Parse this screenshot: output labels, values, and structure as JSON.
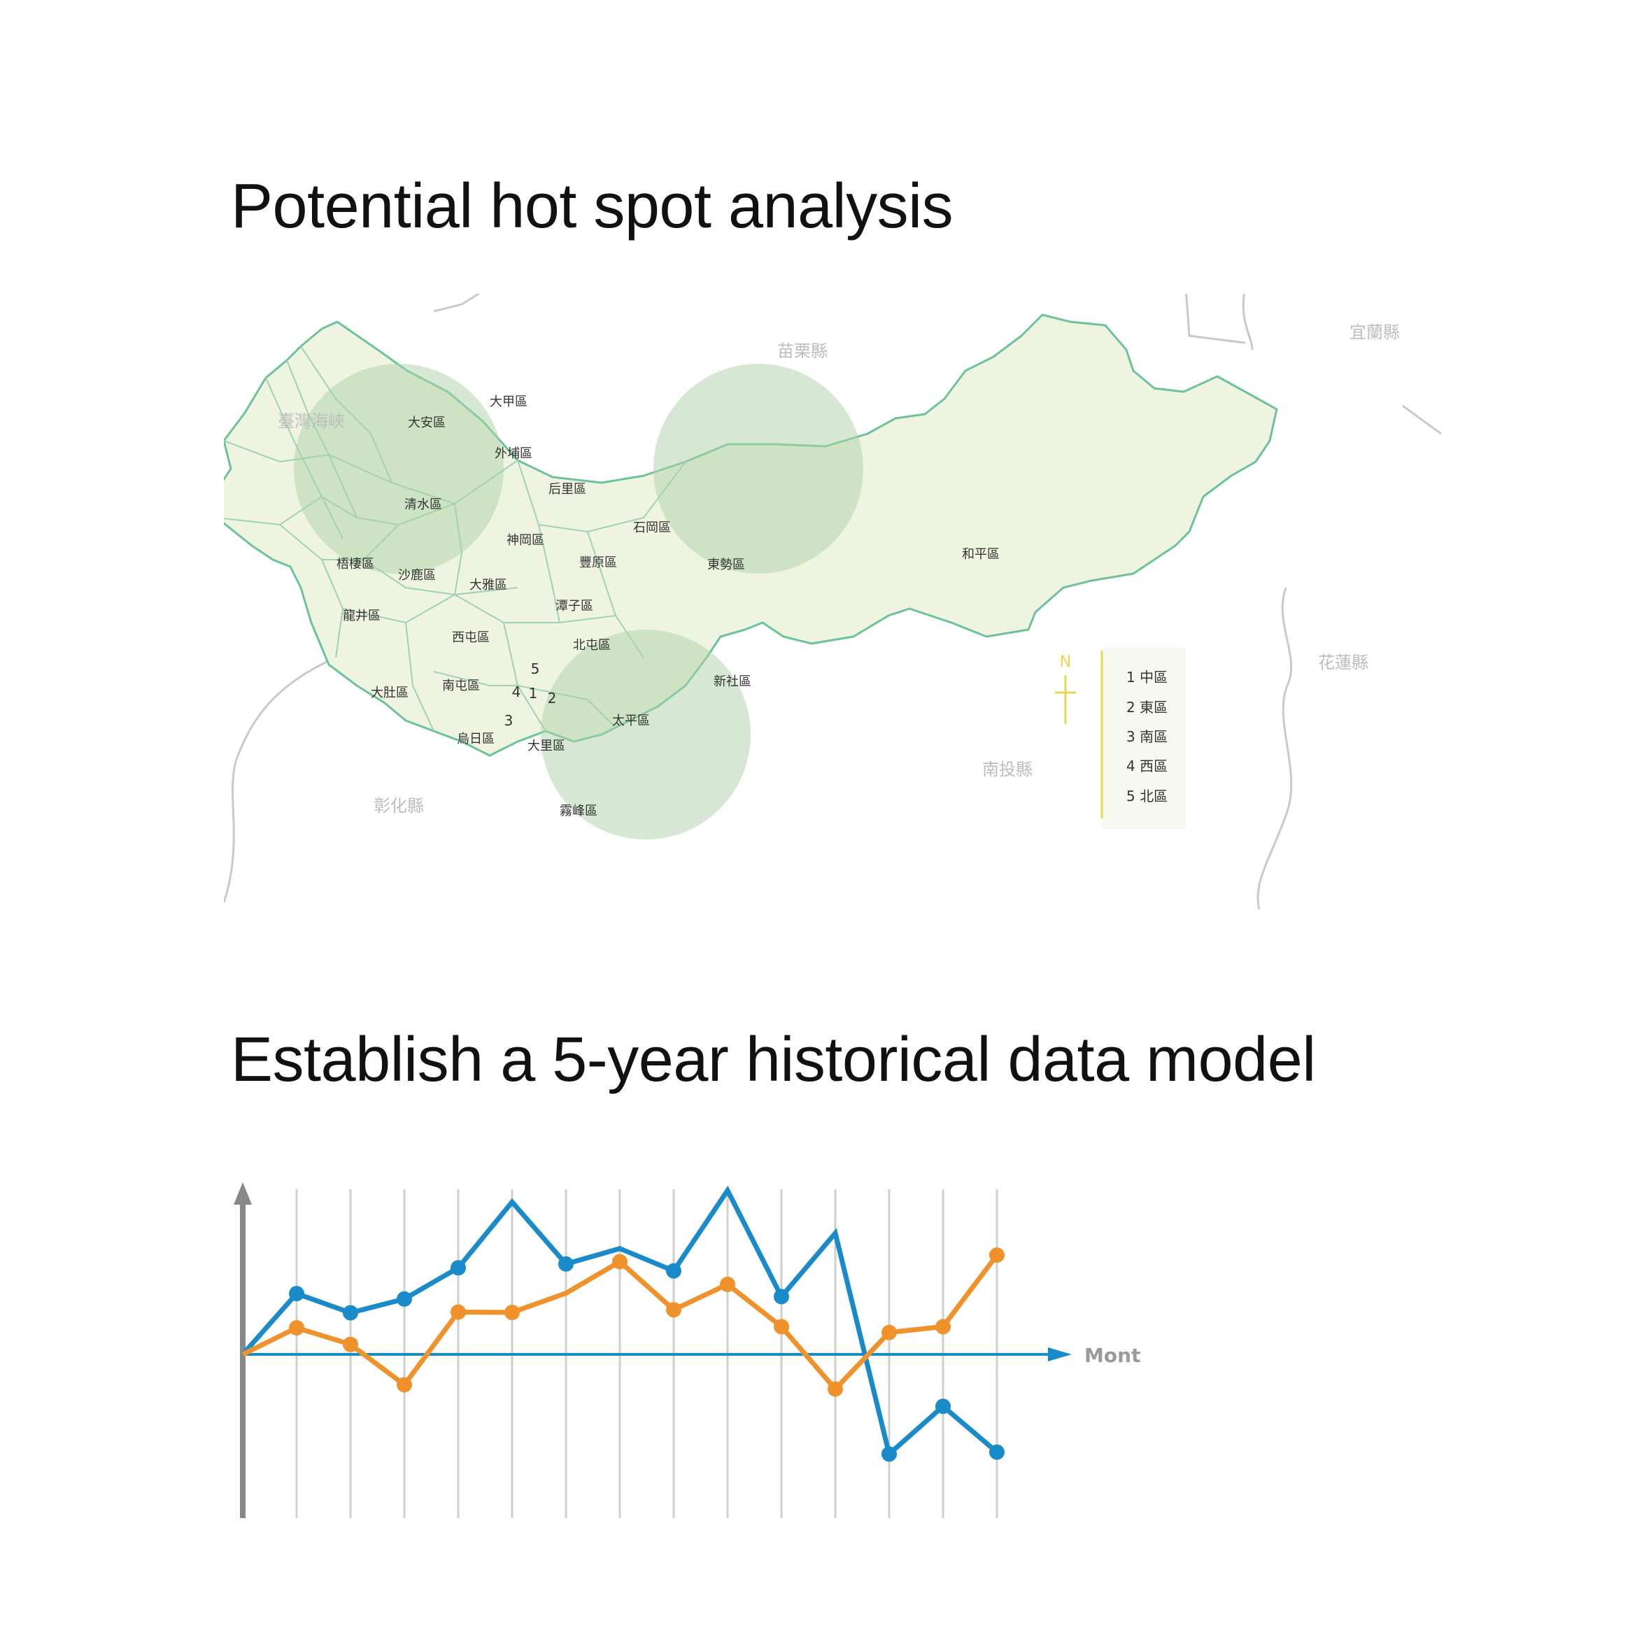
{
  "headings": {
    "hotspot": "Potential hot spot analysis",
    "model": "Establish a 5-year historical data model"
  },
  "map": {
    "outside_labels": [
      "臺灣海峽",
      "苗栗縣",
      "宜蘭縣",
      "花蓮縣",
      "南投縣",
      "彰化縣"
    ],
    "districts": [
      "大甲區",
      "大安區",
      "外埔區",
      "后里區",
      "清水區",
      "石岡區",
      "神岡區",
      "豐原區",
      "東勢區",
      "梧棲區",
      "沙鹿區",
      "大雅區",
      "潭子區",
      "龍井區",
      "西屯區",
      "北屯區",
      "新社區",
      "大肚區",
      "南屯區",
      "太平區",
      "烏日區",
      "大里區",
      "霧峰區",
      "和平區"
    ],
    "district_numbers": [
      "5",
      "4",
      "1",
      "2",
      "3"
    ],
    "legend": {
      "north": "N",
      "items": [
        "1 中區",
        "2 東區",
        "3 南區",
        "4 西區",
        "5 北區"
      ]
    },
    "colors": {
      "land": "#eef4e0",
      "border": "#6cc29a",
      "hotspot": "#aed2a8"
    }
  },
  "chart_data": {
    "type": "line",
    "xlabel": "Mont",
    "x": [
      0,
      1,
      2,
      3,
      4,
      5,
      6,
      7,
      8,
      9,
      10,
      11,
      12,
      13,
      14
    ],
    "series": [
      {
        "color": "#1a8bc9",
        "values": [
          0,
          1.58,
          1.08,
          1.44,
          2.25,
          3.96,
          2.35,
          2.75,
          2.17,
          4.26,
          1.5,
          3.15,
          -2.59,
          -1.35,
          -2.54
        ],
        "markers": [
          false,
          true,
          true,
          true,
          true,
          false,
          true,
          false,
          true,
          false,
          true,
          false,
          true,
          true,
          true
        ]
      },
      {
        "color": "#f0922b",
        "values": [
          0,
          0.69,
          0.26,
          -0.79,
          1.1,
          1.09,
          1.59,
          2.41,
          1.16,
          1.82,
          0.72,
          -0.9,
          0.57,
          0.72,
          2.58
        ],
        "markers": [
          false,
          true,
          true,
          true,
          true,
          true,
          false,
          true,
          true,
          true,
          true,
          true,
          true,
          true,
          true
        ]
      }
    ],
    "colors": {
      "axis": "#888888",
      "baseline": "#1a8bc9",
      "grid": "#cfcfcf"
    }
  }
}
